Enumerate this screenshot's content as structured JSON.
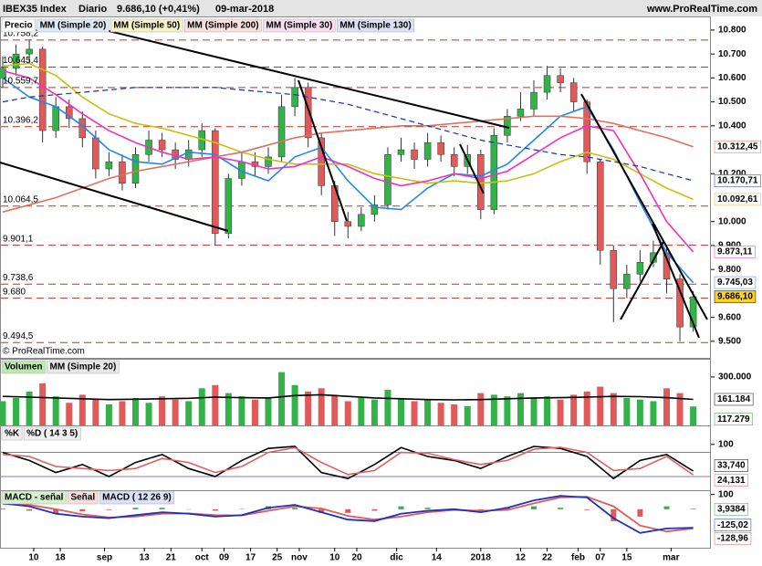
{
  "header": {
    "title": "IBEX35 Index",
    "period": "Diario",
    "quote": "9.686,10 (+0,41%)",
    "date": "09-mar-2018",
    "site": "www.ProRealTime.com"
  },
  "chart_data": [
    {
      "type": "candlestick",
      "legend_title": "Precio",
      "copyright": "© ProRealTime.com",
      "up_color": "#33b24a",
      "down_color": "#e05a5a",
      "last_label": "9.686,10",
      "last_bg": "#ffd21f",
      "xlim": [
        0,
        160
      ],
      "ylim": [
        9488,
        10853
      ],
      "yticks": [
        {
          "value": 10800,
          "label": "10.800"
        },
        {
          "value": 10700,
          "label": "10.700"
        },
        {
          "value": 10600,
          "label": "10.600"
        },
        {
          "value": 10500,
          "label": "10.500"
        },
        {
          "value": 10400,
          "label": "10.400"
        },
        {
          "value": 10200,
          "label": "10.200"
        },
        {
          "value": 10000,
          "label": "10.000"
        },
        {
          "value": 9900,
          "label": "9.900"
        },
        {
          "value": 9800,
          "label": "9.800"
        },
        {
          "value": 9600,
          "label": "9.600"
        },
        {
          "value": 9500,
          "label": "9.500"
        }
      ],
      "levels": [
        {
          "value": 10758.2,
          "label": "10.758,2"
        },
        {
          "value": 10645.4,
          "label": "10.645,4"
        },
        {
          "value": 10559.7,
          "label": "10.559,7"
        },
        {
          "value": 10396.2,
          "label": "10.396,2"
        },
        {
          "value": 10064.5,
          "label": "10.064,5"
        },
        {
          "value": 9901.1,
          "label": "9.901,1"
        },
        {
          "value": 9738.6,
          "label": "9.738,6"
        },
        {
          "value": 9680,
          "label": "9.680"
        },
        {
          "value": 9494.5,
          "label": "9.494,5"
        }
      ],
      "x": [
        0,
        3,
        6,
        9,
        12,
        15,
        18,
        21,
        24,
        27,
        30,
        33,
        36,
        39,
        42,
        45,
        48,
        51,
        54,
        57,
        60,
        63,
        66,
        69,
        72,
        75,
        78,
        81,
        84,
        87,
        90,
        93,
        96,
        99,
        102,
        105,
        108,
        111,
        114,
        117,
        120,
        123,
        126,
        129,
        132,
        135,
        138,
        141,
        144,
        147,
        150,
        153,
        156
      ],
      "open": [
        10600,
        10640,
        10700,
        10720,
        10380,
        10480,
        10430,
        10350,
        10220,
        10250,
        10160,
        10280,
        10340,
        10300,
        10260,
        10300,
        10380,
        9950,
        10180,
        10250,
        10230,
        10270,
        10480,
        10560,
        10350,
        10150,
        10000,
        9980,
        10030,
        10070,
        10280,
        10300,
        10260,
        10330,
        10280,
        10230,
        10280,
        10050,
        10360,
        10440,
        10470,
        10540,
        10610,
        10580,
        10500,
        10250,
        9880,
        9720,
        9780,
        9830,
        9870,
        9760,
        9560
      ],
      "high": [
        10690,
        10740,
        10760,
        10730,
        10520,
        10510,
        10460,
        10380,
        10290,
        10280,
        10310,
        10380,
        10370,
        10330,
        10340,
        10410,
        10390,
        10200,
        10290,
        10290,
        10310,
        10530,
        10600,
        10580,
        10370,
        10170,
        10040,
        10060,
        10110,
        10310,
        10350,
        10330,
        10370,
        10360,
        10310,
        10320,
        10300,
        10390,
        10470,
        10540,
        10590,
        10650,
        10640,
        10600,
        10510,
        10260,
        9900,
        9820,
        9880,
        9920,
        9890,
        9780,
        9710
      ],
      "low": [
        10560,
        10610,
        10660,
        10330,
        10350,
        10390,
        10310,
        10180,
        10190,
        10130,
        10140,
        10250,
        10270,
        10220,
        10230,
        10270,
        9900,
        9930,
        10150,
        10190,
        10200,
        10250,
        10440,
        10310,
        10110,
        9940,
        9930,
        9960,
        10000,
        10050,
        10250,
        10220,
        10230,
        10250,
        10190,
        10200,
        10010,
        10030,
        10330,
        10420,
        10440,
        10510,
        10540,
        10460,
        10200,
        9820,
        9580,
        9680,
        9750,
        9810,
        9700,
        9500,
        9540
      ],
      "close": [
        10640,
        10700,
        10720,
        10380,
        10480,
        10430,
        10350,
        10220,
        10250,
        10160,
        10280,
        10340,
        10300,
        10260,
        10300,
        10380,
        9950,
        10180,
        10250,
        10230,
        10270,
        10480,
        10560,
        10350,
        10150,
        10000,
        9980,
        10030,
        10070,
        10280,
        10300,
        10260,
        10330,
        10280,
        10230,
        10280,
        10050,
        10360,
        10440,
        10470,
        10540,
        10610,
        10580,
        10500,
        10250,
        9880,
        9720,
        9780,
        9830,
        9870,
        9760,
        9560,
        9686.1
      ],
      "overlays": {
        "x": [
          0,
          6,
          12,
          18,
          24,
          30,
          36,
          42,
          48,
          54,
          60,
          66,
          72,
          78,
          84,
          90,
          96,
          102,
          108,
          114,
          120,
          126,
          132,
          138,
          144,
          150,
          156
        ],
        "series": [
          {
            "name": "MM (Simple 20)",
            "color": "#1e88f0",
            "label_bg": "#dde8f5",
            "dashed": false,
            "last_label": "9.745,03",
            "values": [
              10600,
              10520,
              10480,
              10400,
              10300,
              10250,
              10240,
              10290,
              10280,
              10210,
              10170,
              10270,
              10310,
              10170,
              10060,
              10050,
              10140,
              10200,
              10190,
              10240,
              10340,
              10440,
              10480,
              10300,
              10080,
              9870,
              9745.03
            ]
          },
          {
            "name": "MM (Simple 50)",
            "color": "#c8c010",
            "label_bg": "#f5f2c8",
            "dashed": false,
            "last_label": "10.092,61",
            "values": [
              10650,
              10660,
              10610,
              10520,
              10450,
              10410,
              10390,
              10360,
              10330,
              10290,
              10260,
              10240,
              10240,
              10240,
              10200,
              10180,
              10160,
              10170,
              10160,
              10170,
              10200,
              10250,
              10290,
              10260,
              10200,
              10140,
              10092.61
            ]
          },
          {
            "name": "MM (Simple 200)",
            "color": "#e0705e",
            "label_bg": "#f8e0dc",
            "dashed": false,
            "last_label": "10.312,45",
            "values": [
              10040,
              10070,
              10100,
              10140,
              10180,
              10210,
              10230,
              10250,
              10270,
              10290,
              10320,
              10350,
              10370,
              10380,
              10390,
              10400,
              10400,
              10410,
              10420,
              10430,
              10440,
              10440,
              10430,
              10410,
              10380,
              10350,
              10312.45
            ]
          },
          {
            "name": "MM (Simple 30)",
            "color": "#f030c0",
            "label_bg": "#f8dcf0",
            "dashed": false,
            "last_label": "9.873,11",
            "values": [
              10630,
              10600,
              10530,
              10450,
              10380,
              10330,
              10290,
              10260,
              10270,
              10250,
              10220,
              10230,
              10270,
              10230,
              10180,
              10150,
              10170,
              10200,
              10180,
              10210,
              10280,
              10350,
              10400,
              10380,
              10200,
              10000,
              9873.11
            ]
          },
          {
            "name": "MM (Simple 130)",
            "color": "#1030c0",
            "label_bg": "#dde0f5",
            "dashed": true,
            "last_label": "10.170,71",
            "values": [
              10500,
              10520,
              10530,
              10540,
              10550,
              10560,
              10560,
              10560,
              10560,
              10550,
              10540,
              10530,
              10510,
              10490,
              10460,
              10430,
              10400,
              10370,
              10340,
              10320,
              10300,
              10280,
              10270,
              10250,
              10230,
              10200,
              10170.71
            ]
          }
        ]
      }
    },
    {
      "type": "bar",
      "legend_title": "Volumen",
      "legend_bg": "#bfe8b0",
      "last_label": "117.279",
      "xlim": [
        0,
        160
      ],
      "ylim": [
        0,
        390000
      ],
      "yticks": [
        {
          "value": 300000,
          "label": "300.000"
        }
      ],
      "values": [
        150000,
        170000,
        210000,
        260000,
        180000,
        140000,
        190000,
        160000,
        130000,
        150000,
        170000,
        140000,
        180000,
        160000,
        150000,
        230000,
        250000,
        200000,
        180000,
        160000,
        170000,
        330000,
        250000,
        210000,
        230000,
        190000,
        150000,
        170000,
        160000,
        220000,
        170000,
        150000,
        160000,
        140000,
        130000,
        120000,
        200000,
        190000,
        180000,
        200000,
        170000,
        180000,
        160000,
        190000,
        210000,
        240000,
        200000,
        170000,
        160000,
        150000,
        230000,
        200000,
        117279
      ],
      "overlay": {
        "name": "MM (Simple 20)",
        "color": "#000000",
        "last_label": "161.184",
        "values": [
          180000,
          175000,
          170000,
          165000,
          160000,
          162000,
          165000,
          168000,
          175000,
          172000,
          170000,
          185000,
          190000,
          180000,
          170000,
          165000,
          160000,
          158000,
          160000,
          165000,
          170000,
          172000,
          175000,
          180000,
          178000,
          172000,
          161184
        ]
      }
    },
    {
      "type": "line",
      "xlim": [
        0,
        160
      ],
      "ylim": [
        -14,
        145
      ],
      "yticks": [
        100
      ],
      "levels": [
        20,
        80
      ],
      "series": [
        {
          "name": "%K",
          "color": "#000000",
          "last_label": "33,740",
          "values": [
            80,
            60,
            30,
            50,
            20,
            55,
            75,
            40,
            20,
            60,
            90,
            95,
            30,
            15,
            50,
            92,
            70,
            60,
            40,
            70,
            95,
            90,
            70,
            15,
            60,
            75,
            33.74
          ]
        },
        {
          "name": "%D ( 14 3 5)",
          "color": "#e06060",
          "last_label": "24,131",
          "values": [
            75,
            70,
            45,
            40,
            35,
            40,
            65,
            55,
            30,
            45,
            80,
            92,
            55,
            25,
            35,
            80,
            78,
            62,
            50,
            60,
            88,
            93,
            80,
            35,
            40,
            70,
            24.131
          ]
        }
      ]
    },
    {
      "type": "macd",
      "xlim": [
        0,
        160
      ],
      "ylim": [
        -260,
        110
      ],
      "yticks": [
        100
      ],
      "xticks": [
        {
          "value": 7,
          "label": "10"
        },
        {
          "value": 13,
          "label": "18"
        },
        {
          "value": 23,
          "label": "sep"
        },
        {
          "value": 32,
          "label": "13"
        },
        {
          "value": 38,
          "label": "21"
        },
        {
          "value": 45,
          "label": "oct"
        },
        {
          "value": 50,
          "label": "09"
        },
        {
          "value": 56,
          "label": "17"
        },
        {
          "value": 62,
          "label": "25"
        },
        {
          "value": 67,
          "label": "nov"
        },
        {
          "value": 75,
          "label": "10"
        },
        {
          "value": 80,
          "label": "20"
        },
        {
          "value": 89,
          "label": "dic"
        },
        {
          "value": 98,
          "label": "14"
        },
        {
          "value": 108,
          "label": "2018"
        },
        {
          "value": 117,
          "label": "12"
        },
        {
          "value": 123,
          "label": "22"
        },
        {
          "value": 130,
          "label": "feb"
        },
        {
          "value": 135,
          "label": "07"
        },
        {
          "value": 141,
          "label": "15"
        },
        {
          "value": 151,
          "label": "mar"
        }
      ],
      "series": [
        {
          "name": "MACD - señal",
          "color": "#33b24a",
          "neg_color": "#e05a5a",
          "label_bg": "#d4f0cc",
          "last_label": "3,9384",
          "values": [
            5,
            -10,
            -30,
            -15,
            -5,
            10,
            10,
            -2,
            -10,
            2,
            20,
            10,
            -25,
            -25,
            -10,
            20,
            10,
            5,
            -10,
            15,
            20,
            10,
            -5,
            -80,
            -50,
            20,
            3.9384
          ]
        },
        {
          "name": "Señal",
          "color": "#e05a5a",
          "label_bg": "#f8dcdc",
          "last_label": "-128,96",
          "values": [
            35,
            30,
            0,
            -35,
            -55,
            -50,
            -30,
            -28,
            -40,
            -42,
            -10,
            20,
            5,
            -45,
            -70,
            -50,
            -20,
            -5,
            -10,
            -5,
            40,
            80,
            85,
            20,
            -110,
            -150,
            -128.96
          ]
        },
        {
          "name": "MACD ( 12 26 9)",
          "color": "#2030c0",
          "label_bg": "#dde0f5",
          "last_label": "-125,02",
          "values": [
            40,
            20,
            -30,
            -50,
            -60,
            -40,
            -20,
            -30,
            -50,
            -40,
            10,
            30,
            -20,
            -70,
            -80,
            -30,
            -10,
            0,
            -20,
            10,
            60,
            90,
            80,
            -60,
            -160,
            -130,
            -125.02
          ]
        }
      ]
    }
  ]
}
